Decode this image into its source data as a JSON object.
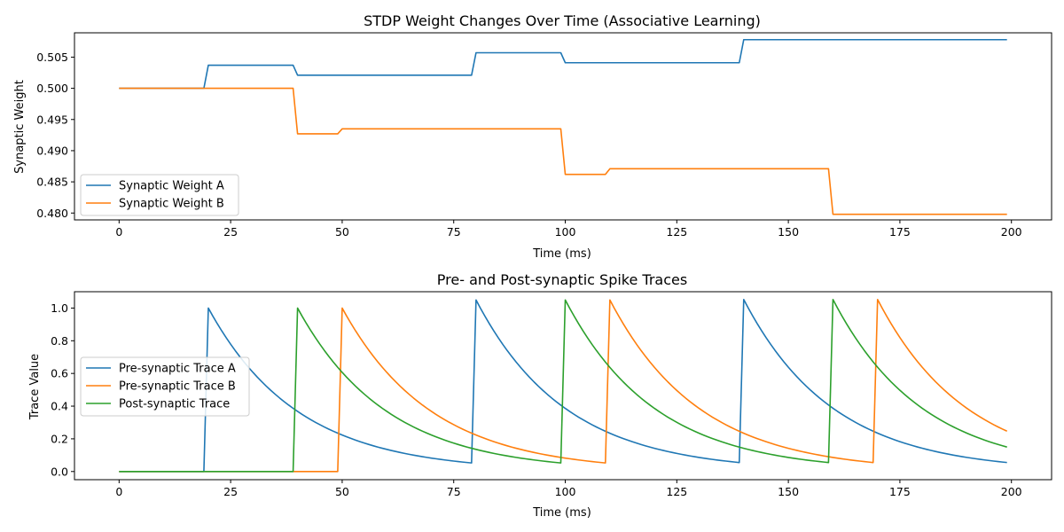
{
  "chart_data": [
    {
      "type": "line",
      "title": "STDP Weight Changes Over Time (Associative Learning)",
      "xlabel": "Time (ms)",
      "ylabel": "Synaptic Weight",
      "xlim": [
        -10,
        209
      ],
      "ylim": [
        0.4789,
        0.5089
      ],
      "xticks": [
        0,
        25,
        50,
        75,
        100,
        125,
        150,
        175,
        200
      ],
      "yticks": [
        0.48,
        0.485,
        0.49,
        0.495,
        0.5,
        0.505
      ],
      "ytick_labels": [
        "0.480",
        "0.485",
        "0.490",
        "0.495",
        "0.500",
        "0.505"
      ],
      "legend_position": "lower-left",
      "grid": false,
      "series": [
        {
          "name": "Synaptic Weight A",
          "color": "#1f77b4",
          "points": [
            [
              0,
              0.5
            ],
            [
              19,
              0.5
            ],
            [
              20,
              0.5037
            ],
            [
              39,
              0.5037
            ],
            [
              40,
              0.5021
            ],
            [
              79,
              0.5021
            ],
            [
              80,
              0.5057
            ],
            [
              99,
              0.5057
            ],
            [
              100,
              0.5041
            ],
            [
              139,
              0.5041
            ],
            [
              140,
              0.5078
            ],
            [
              199,
              0.5078
            ]
          ]
        },
        {
          "name": "Synaptic Weight B",
          "color": "#ff7f0e",
          "points": [
            [
              0,
              0.5
            ],
            [
              39,
              0.5
            ],
            [
              40,
              0.4927
            ],
            [
              49,
              0.4927
            ],
            [
              50,
              0.4935
            ],
            [
              99,
              0.4935
            ],
            [
              100,
              0.4862
            ],
            [
              109,
              0.4862
            ],
            [
              110,
              0.4871
            ],
            [
              159,
              0.4871
            ],
            [
              160,
              0.4798
            ],
            [
              199,
              0.4798
            ]
          ]
        }
      ]
    },
    {
      "type": "line",
      "title": "Pre- and Post-synaptic Spike Traces",
      "xlabel": "Time (ms)",
      "ylabel": "Trace Value",
      "xlim": [
        -10,
        209
      ],
      "ylim": [
        -0.05,
        1.1
      ],
      "xticks": [
        0,
        25,
        50,
        75,
        100,
        125,
        150,
        175,
        200
      ],
      "yticks": [
        0.0,
        0.2,
        0.4,
        0.6,
        0.8,
        1.0
      ],
      "ytick_labels": [
        "0.0",
        "0.2",
        "0.4",
        "0.6",
        "0.8",
        "1.0"
      ],
      "legend_position": "center-left",
      "grid": false,
      "decay_tau_ms": 20,
      "series": [
        {
          "name": "Pre-synaptic Trace A",
          "color": "#1f77b4",
          "spike_times": [
            20,
            80,
            140
          ]
        },
        {
          "name": "Pre-synaptic Trace B",
          "color": "#ff7f0e",
          "spike_times": [
            50,
            110,
            170
          ]
        },
        {
          "name": "Post-synaptic Trace",
          "color": "#2ca02c",
          "spike_times": [
            40,
            100,
            160
          ]
        }
      ]
    }
  ]
}
